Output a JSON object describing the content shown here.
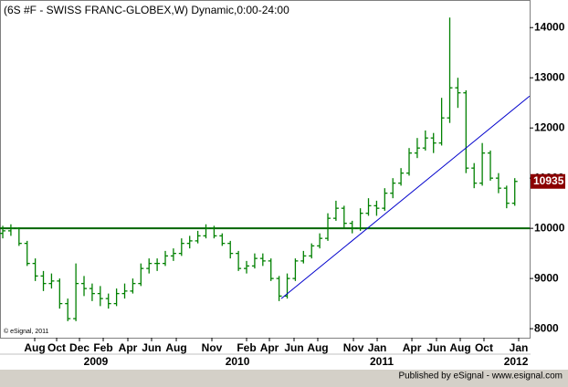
{
  "chart_data": {
    "type": "ohlc",
    "title": "(6S #F - SWISS FRANC-GLOBEX,W) Dynamic,0:00-24:00",
    "copyright": "© eSignal, 2011",
    "footer": "Published by eSignal - www.esignal.com",
    "color": "#008000",
    "ohlc": [
      [
        9900,
        10050,
        9800,
        9950
      ],
      [
        9950,
        10080,
        9850,
        10000
      ],
      [
        10000,
        10020,
        9650,
        9700
      ],
      [
        9700,
        9750,
        9250,
        9300
      ],
      [
        9300,
        9400,
        8950,
        9050
      ],
      [
        9050,
        9150,
        8750,
        8900
      ],
      [
        8900,
        9100,
        8800,
        8950
      ],
      [
        8950,
        9000,
        8400,
        8500
      ],
      [
        8500,
        8600,
        8150,
        8200
      ],
      [
        8200,
        9300,
        8150,
        8900
      ],
      [
        8900,
        9050,
        8650,
        8800
      ],
      [
        8800,
        8900,
        8550,
        8700
      ],
      [
        8700,
        8850,
        8450,
        8600
      ],
      [
        8600,
        8700,
        8400,
        8500
      ],
      [
        8500,
        8800,
        8450,
        8700
      ],
      [
        8700,
        8900,
        8600,
        8750
      ],
      [
        8750,
        9000,
        8700,
        8900
      ],
      [
        8900,
        9300,
        8850,
        9200
      ],
      [
        9200,
        9400,
        9100,
        9300
      ],
      [
        9300,
        9400,
        9150,
        9300
      ],
      [
        9300,
        9550,
        9250,
        9450
      ],
      [
        9450,
        9600,
        9350,
        9500
      ],
      [
        9500,
        9800,
        9450,
        9700
      ],
      [
        9700,
        9850,
        9600,
        9750
      ],
      [
        9750,
        9950,
        9700,
        9850
      ],
      [
        9850,
        10080,
        9800,
        10000
      ],
      [
        10000,
        10050,
        9800,
        9850
      ],
      [
        9850,
        9900,
        9650,
        9700
      ],
      [
        9700,
        9750,
        9400,
        9500
      ],
      [
        9500,
        9550,
        9150,
        9200
      ],
      [
        9200,
        9350,
        9100,
        9250
      ],
      [
        9250,
        9500,
        9200,
        9400
      ],
      [
        9400,
        9500,
        9250,
        9350
      ],
      [
        9350,
        9400,
        8950,
        9000
      ],
      [
        9000,
        9050,
        8550,
        8650
      ],
      [
        8650,
        9100,
        8600,
        9000
      ],
      [
        9000,
        9400,
        8950,
        9350
      ],
      [
        9350,
        9550,
        9300,
        9450
      ],
      [
        9450,
        9700,
        9400,
        9650
      ],
      [
        9650,
        9900,
        9600,
        9800
      ],
      [
        9800,
        10300,
        9750,
        10200
      ],
      [
        10200,
        10550,
        10150,
        10400
      ],
      [
        10400,
        10450,
        10000,
        10100
      ],
      [
        10100,
        10150,
        9900,
        10000
      ],
      [
        10000,
        10400,
        9950,
        10300
      ],
      [
        10300,
        10600,
        10250,
        10450
      ],
      [
        10450,
        10550,
        10250,
        10400
      ],
      [
        10400,
        10800,
        10350,
        10700
      ],
      [
        10700,
        11000,
        10600,
        10900
      ],
      [
        10900,
        11200,
        10850,
        11100
      ],
      [
        11100,
        11600,
        11050,
        11500
      ],
      [
        11500,
        11800,
        11400,
        11600
      ],
      [
        11600,
        11950,
        11550,
        11800
      ],
      [
        11800,
        11900,
        11500,
        11700
      ],
      [
        11700,
        12600,
        11650,
        12200
      ],
      [
        12200,
        14200,
        12100,
        12800
      ],
      [
        12800,
        13000,
        12400,
        12700
      ],
      [
        12700,
        12750,
        11100,
        11200
      ],
      [
        11200,
        11300,
        10800,
        10900
      ],
      [
        10900,
        11700,
        10850,
        11500
      ],
      [
        11500,
        11550,
        10950,
        11000
      ],
      [
        11000,
        11100,
        10700,
        10800
      ],
      [
        10800,
        10850,
        10400,
        10500
      ],
      [
        10500,
        11000,
        10450,
        10935
      ]
    ],
    "xlim": [
      -0.34,
      64.83
    ],
    "ylim": [
      7820,
      14550
    ],
    "yticks": [
      8000,
      9000,
      10000,
      11000,
      12000,
      13000,
      14000
    ],
    "xticks": [
      {
        "value": 3.93,
        "label": "Aug"
      },
      {
        "value": 6.63,
        "label": "Oct"
      },
      {
        "value": 9.44,
        "label": "Dec"
      },
      {
        "value": 12.36,
        "label": "Feb"
      },
      {
        "value": 15.39,
        "label": "Apr"
      },
      {
        "value": 18.31,
        "label": "Jun"
      },
      {
        "value": 21.35,
        "label": "Aug"
      },
      {
        "value": 25.73,
        "label": "Nov"
      },
      {
        "value": 30.0,
        "label": "Feb"
      },
      {
        "value": 32.81,
        "label": "Apr"
      },
      {
        "value": 35.84,
        "label": "Jun"
      },
      {
        "value": 38.76,
        "label": "Aug"
      },
      {
        "value": 43.15,
        "label": "Nov"
      },
      {
        "value": 46.07,
        "label": "Jan"
      },
      {
        "value": 50.34,
        "label": "Apr"
      },
      {
        "value": 53.37,
        "label": "Jun"
      },
      {
        "value": 56.29,
        "label": "Aug"
      },
      {
        "value": 59.21,
        "label": "Oct"
      },
      {
        "value": 63.48,
        "label": "Jan"
      }
    ],
    "year_labels": [
      {
        "value": 11.46,
        "label": "2009"
      },
      {
        "value": 28.88,
        "label": "2010"
      },
      {
        "value": 46.63,
        "label": "2011"
      },
      {
        "value": 63.15,
        "label": "2012"
      }
    ],
    "horizontal_line": {
      "value": 10000,
      "color": "#006400"
    },
    "trendline": {
      "from": [
        34.27,
        8600
      ],
      "to": [
        64.83,
        12636
      ],
      "color": "#0000cc"
    },
    "last_price_color": "#8b0000"
  }
}
